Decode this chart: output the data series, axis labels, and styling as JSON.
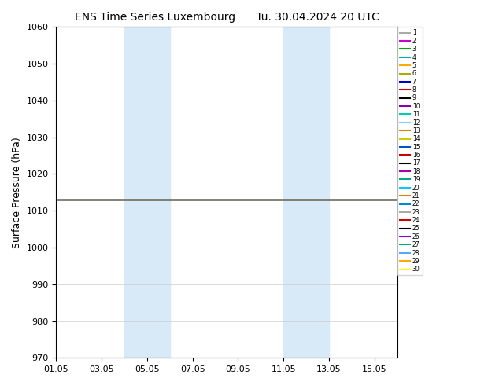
{
  "title": "ENS Time Series Luxembourg      Tu. 30.04.2024 20 UTC",
  "ylabel": "Surface Pressure (hPa)",
  "ylim": [
    970,
    1060
  ],
  "yticks": [
    970,
    980,
    990,
    1000,
    1010,
    1020,
    1030,
    1040,
    1050,
    1060
  ],
  "xlim_start": "2024-05-01",
  "xlim_end": "2024-05-16",
  "xtick_labels": [
    "01.05",
    "03.05",
    "05.05",
    "07.05",
    "09.05",
    "11.05",
    "13.05",
    "15.05"
  ],
  "shaded_regions": [
    [
      "2024-05-04",
      "2024-05-06"
    ],
    [
      "2024-05-11",
      "2024-05-13"
    ]
  ],
  "ensemble_colors": [
    "#aaaaaa",
    "#cc00cc",
    "#00aa00",
    "#00aaaa",
    "#ffaa00",
    "#aaaa00",
    "#0000cc",
    "#cc0000",
    "#000000",
    "#8800aa",
    "#00ccaa",
    "#88ccff",
    "#cc8800",
    "#cccc00",
    "#0055cc",
    "#cc0000",
    "#000000",
    "#aa00aa",
    "#00aa88",
    "#00ccff",
    "#cc8800",
    "#0088cc",
    "#aaaaaa",
    "#cc0000",
    "#000000",
    "#8800cc",
    "#00aa88",
    "#55aaff",
    "#ffaa00",
    "#ffff00"
  ],
  "num_members": 30,
  "value": 1013.0,
  "background_color": "#ffffff",
  "shade_color": "#d8eaf8"
}
